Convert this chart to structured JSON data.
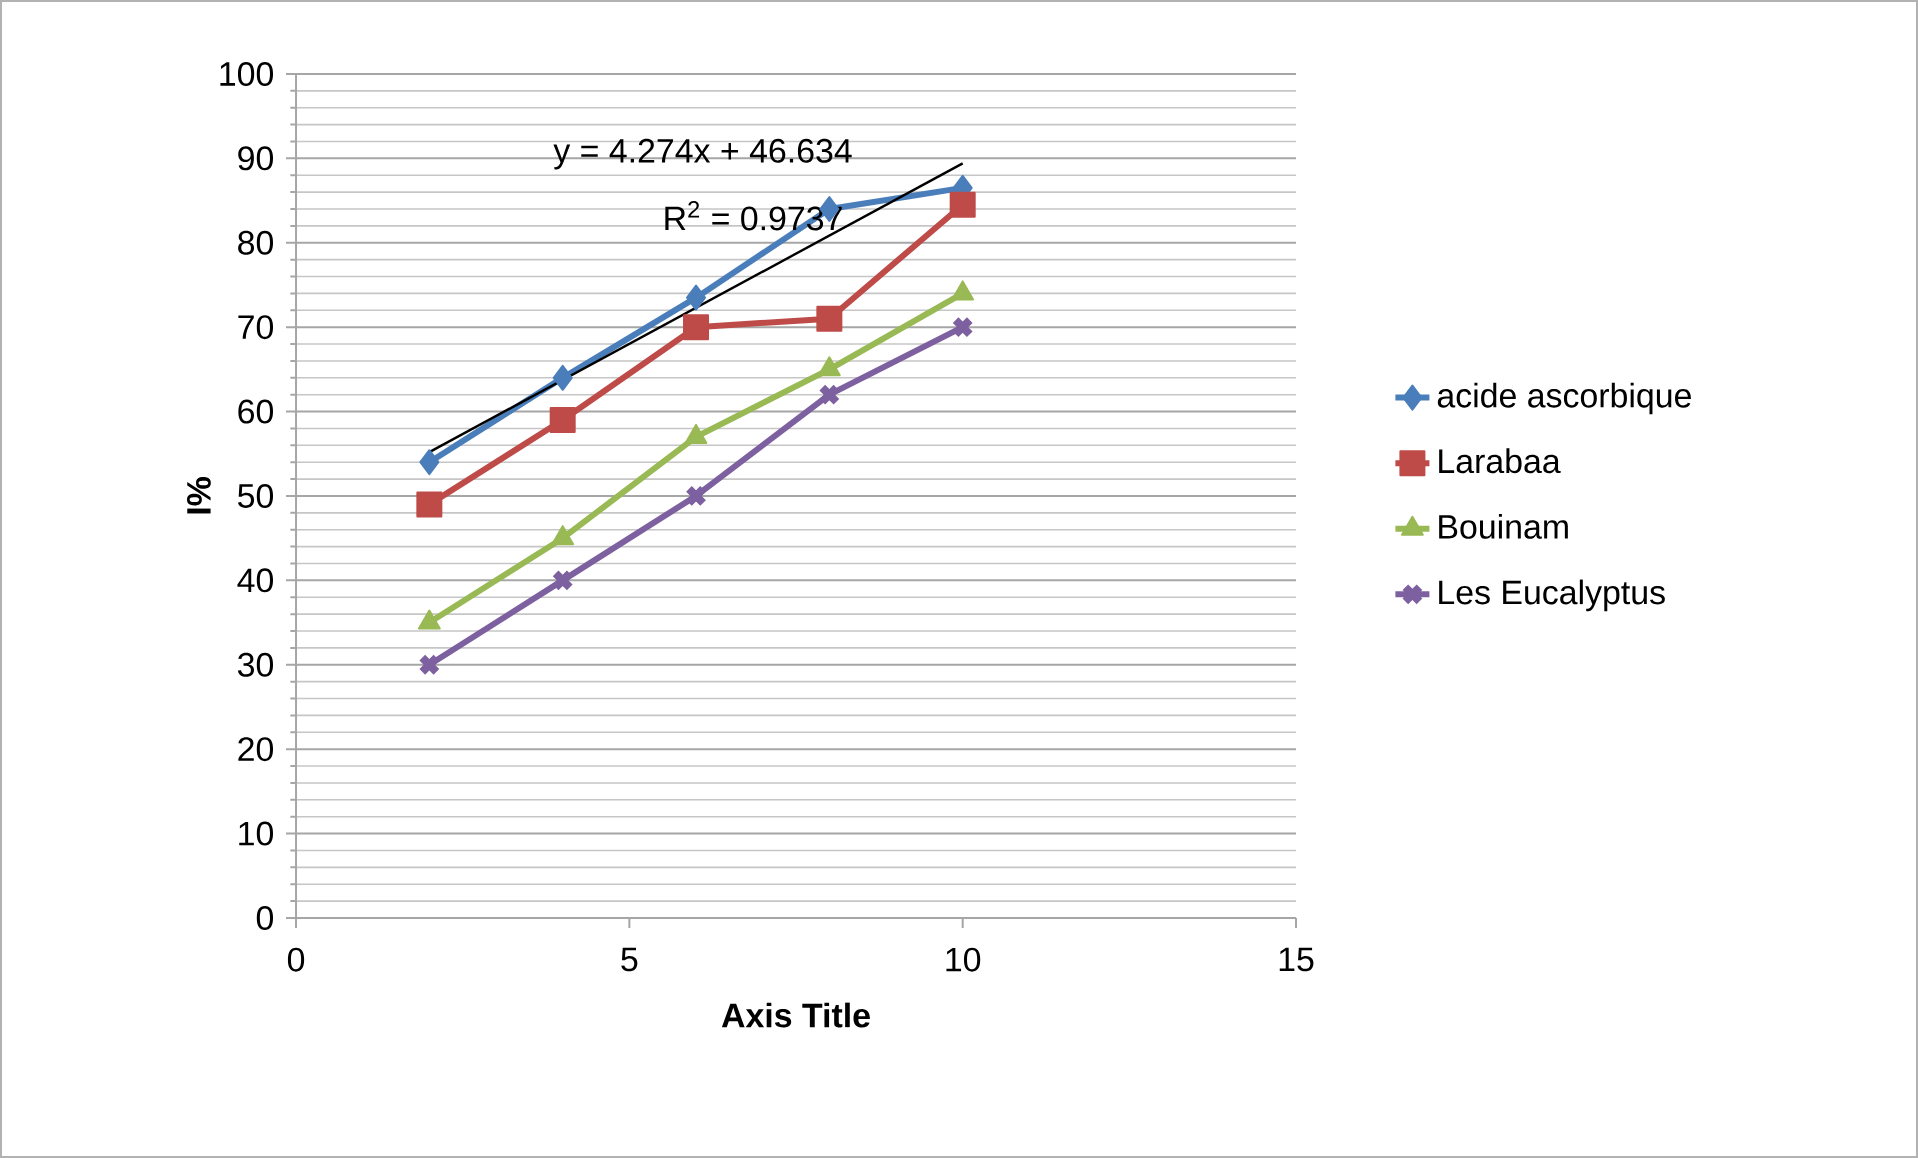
{
  "chart_data": {
    "type": "line",
    "xlabel": "Axis Title",
    "ylabel": "I%",
    "x": [
      2,
      4,
      6,
      8,
      10
    ],
    "series": [
      {
        "name": "acide ascorbique",
        "color": "#4a7ebb",
        "marker": "diamond",
        "values": [
          54,
          64,
          73.5,
          84,
          86.5
        ]
      },
      {
        "name": "Larabaa",
        "color": "#be4b48",
        "marker": "square",
        "values": [
          49,
          59,
          70,
          71,
          84.5
        ]
      },
      {
        "name": "Bouinam",
        "color": "#98b954",
        "marker": "triangle",
        "values": [
          35,
          45,
          57,
          65,
          74
        ]
      },
      {
        "name": "Les Eucalyptus",
        "color": "#7d60a0",
        "marker": "cross",
        "values": [
          30,
          40,
          50,
          62,
          70
        ]
      },
      {
        "type": "line",
        "color": "#000000",
        "marker": "none",
        "x": [
          2,
          10
        ],
        "values": [
          55.2,
          89.4
        ]
      }
    ],
    "annotations": [
      "y = 4.274x + 46.634",
      "R$^{2}$ = 0.9737"
    ],
    "xlim": [
      0,
      15
    ],
    "xticks": [
      0,
      5,
      10,
      15
    ],
    "ylim": [
      0,
      100
    ],
    "yticks": [
      0,
      10,
      20,
      30,
      40,
      50,
      60,
      70,
      80,
      90,
      100
    ],
    "grid": "y",
    "legend": "right",
    "line_style": "solid"
  }
}
